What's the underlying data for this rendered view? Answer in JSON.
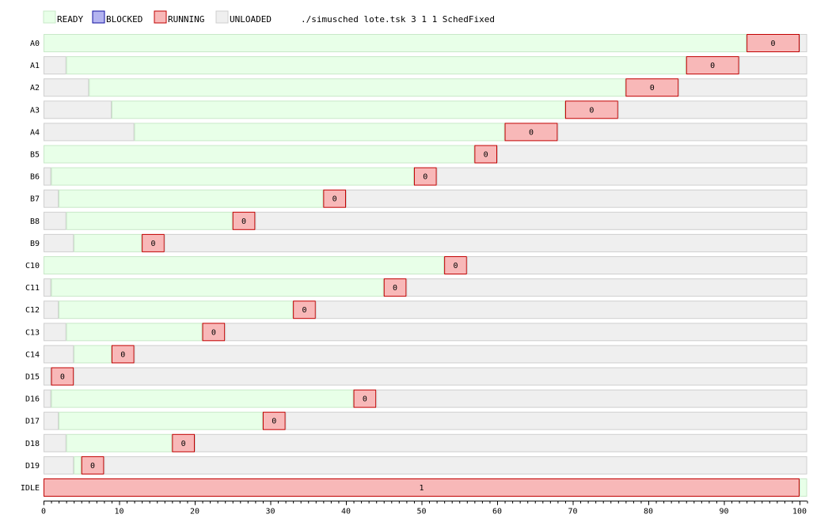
{
  "chart_data": {
    "type": "gantt",
    "legend": [
      {
        "label": "READY",
        "fill": "#e8ffe8",
        "stroke": "#c8e8c8"
      },
      {
        "label": "BLOCKED",
        "fill": "#b4b4f0",
        "stroke": "#1010a0"
      },
      {
        "label": "RUNNING",
        "fill": "#f8b8b8",
        "stroke": "#c00000"
      },
      {
        "label": "UNLOADED",
        "fill": "#efefef",
        "stroke": "#cfcfcf"
      }
    ],
    "command": "./simusched lote.tsk 3 1 1 SchedFixed",
    "xlim": [
      0,
      101
    ],
    "xticks": [
      0,
      10,
      20,
      30,
      40,
      50,
      60,
      70,
      80,
      90,
      100
    ],
    "xtick_labels": [
      "0",
      "10",
      "20",
      "30",
      "40",
      "50",
      "60",
      "70",
      "80",
      "90",
      "100"
    ],
    "rows": [
      {
        "label": "A0",
        "segments": [
          {
            "state": "READY",
            "start": 0,
            "end": 93
          },
          {
            "state": "RUNNING",
            "start": 93,
            "end": 100,
            "text": "0"
          },
          {
            "state": "UNLOADED",
            "start": 100,
            "end": 101
          }
        ]
      },
      {
        "label": "A1",
        "segments": [
          {
            "state": "UNLOADED",
            "start": 0,
            "end": 3
          },
          {
            "state": "READY",
            "start": 3,
            "end": 85
          },
          {
            "state": "RUNNING",
            "start": 85,
            "end": 92,
            "text": "0"
          },
          {
            "state": "UNLOADED",
            "start": 92,
            "end": 101
          }
        ]
      },
      {
        "label": "A2",
        "segments": [
          {
            "state": "UNLOADED",
            "start": 0,
            "end": 6
          },
          {
            "state": "READY",
            "start": 6,
            "end": 77
          },
          {
            "state": "RUNNING",
            "start": 77,
            "end": 84,
            "text": "0"
          },
          {
            "state": "UNLOADED",
            "start": 84,
            "end": 101
          }
        ]
      },
      {
        "label": "A3",
        "segments": [
          {
            "state": "UNLOADED",
            "start": 0,
            "end": 9
          },
          {
            "state": "READY",
            "start": 9,
            "end": 69
          },
          {
            "state": "RUNNING",
            "start": 69,
            "end": 76,
            "text": "0"
          },
          {
            "state": "UNLOADED",
            "start": 76,
            "end": 101
          }
        ]
      },
      {
        "label": "A4",
        "segments": [
          {
            "state": "UNLOADED",
            "start": 0,
            "end": 12
          },
          {
            "state": "READY",
            "start": 12,
            "end": 61
          },
          {
            "state": "RUNNING",
            "start": 61,
            "end": 68,
            "text": "0"
          },
          {
            "state": "UNLOADED",
            "start": 68,
            "end": 101
          }
        ]
      },
      {
        "label": "B5",
        "segments": [
          {
            "state": "READY",
            "start": 0,
            "end": 57
          },
          {
            "state": "RUNNING",
            "start": 57,
            "end": 60,
            "text": "0"
          },
          {
            "state": "UNLOADED",
            "start": 60,
            "end": 101
          }
        ]
      },
      {
        "label": "B6",
        "segments": [
          {
            "state": "UNLOADED",
            "start": 0,
            "end": 1
          },
          {
            "state": "READY",
            "start": 1,
            "end": 49
          },
          {
            "state": "RUNNING",
            "start": 49,
            "end": 52,
            "text": "0"
          },
          {
            "state": "UNLOADED",
            "start": 52,
            "end": 101
          }
        ]
      },
      {
        "label": "B7",
        "segments": [
          {
            "state": "UNLOADED",
            "start": 0,
            "end": 2
          },
          {
            "state": "READY",
            "start": 2,
            "end": 37
          },
          {
            "state": "RUNNING",
            "start": 37,
            "end": 40,
            "text": "0"
          },
          {
            "state": "UNLOADED",
            "start": 40,
            "end": 101
          }
        ]
      },
      {
        "label": "B8",
        "segments": [
          {
            "state": "UNLOADED",
            "start": 0,
            "end": 3
          },
          {
            "state": "READY",
            "start": 3,
            "end": 25
          },
          {
            "state": "RUNNING",
            "start": 25,
            "end": 28,
            "text": "0"
          },
          {
            "state": "UNLOADED",
            "start": 28,
            "end": 101
          }
        ]
      },
      {
        "label": "B9",
        "segments": [
          {
            "state": "UNLOADED",
            "start": 0,
            "end": 4
          },
          {
            "state": "READY",
            "start": 4,
            "end": 13
          },
          {
            "state": "RUNNING",
            "start": 13,
            "end": 16,
            "text": "0"
          },
          {
            "state": "UNLOADED",
            "start": 16,
            "end": 101
          }
        ]
      },
      {
        "label": "C10",
        "segments": [
          {
            "state": "READY",
            "start": 0,
            "end": 53
          },
          {
            "state": "RUNNING",
            "start": 53,
            "end": 56,
            "text": "0"
          },
          {
            "state": "UNLOADED",
            "start": 56,
            "end": 101
          }
        ]
      },
      {
        "label": "C11",
        "segments": [
          {
            "state": "UNLOADED",
            "start": 0,
            "end": 1
          },
          {
            "state": "READY",
            "start": 1,
            "end": 45
          },
          {
            "state": "RUNNING",
            "start": 45,
            "end": 48,
            "text": "0"
          },
          {
            "state": "UNLOADED",
            "start": 48,
            "end": 101
          }
        ]
      },
      {
        "label": "C12",
        "segments": [
          {
            "state": "UNLOADED",
            "start": 0,
            "end": 2
          },
          {
            "state": "READY",
            "start": 2,
            "end": 33
          },
          {
            "state": "RUNNING",
            "start": 33,
            "end": 36,
            "text": "0"
          },
          {
            "state": "UNLOADED",
            "start": 36,
            "end": 101
          }
        ]
      },
      {
        "label": "C13",
        "segments": [
          {
            "state": "UNLOADED",
            "start": 0,
            "end": 3
          },
          {
            "state": "READY",
            "start": 3,
            "end": 21
          },
          {
            "state": "RUNNING",
            "start": 21,
            "end": 24,
            "text": "0"
          },
          {
            "state": "UNLOADED",
            "start": 24,
            "end": 101
          }
        ]
      },
      {
        "label": "C14",
        "segments": [
          {
            "state": "UNLOADED",
            "start": 0,
            "end": 4
          },
          {
            "state": "READY",
            "start": 4,
            "end": 9
          },
          {
            "state": "RUNNING",
            "start": 9,
            "end": 12,
            "text": "0"
          },
          {
            "state": "UNLOADED",
            "start": 12,
            "end": 101
          }
        ]
      },
      {
        "label": "D15",
        "segments": [
          {
            "state": "UNLOADED",
            "start": 0,
            "end": 1
          },
          {
            "state": "RUNNING",
            "start": 1,
            "end": 4,
            "text": "0"
          },
          {
            "state": "UNLOADED",
            "start": 4,
            "end": 101
          }
        ]
      },
      {
        "label": "D16",
        "segments": [
          {
            "state": "UNLOADED",
            "start": 0,
            "end": 1
          },
          {
            "state": "READY",
            "start": 1,
            "end": 41
          },
          {
            "state": "RUNNING",
            "start": 41,
            "end": 44,
            "text": "0"
          },
          {
            "state": "UNLOADED",
            "start": 44,
            "end": 101
          }
        ]
      },
      {
        "label": "D17",
        "segments": [
          {
            "state": "UNLOADED",
            "start": 0,
            "end": 2
          },
          {
            "state": "READY",
            "start": 2,
            "end": 29
          },
          {
            "state": "RUNNING",
            "start": 29,
            "end": 32,
            "text": "0"
          },
          {
            "state": "UNLOADED",
            "start": 32,
            "end": 101
          }
        ]
      },
      {
        "label": "D18",
        "segments": [
          {
            "state": "UNLOADED",
            "start": 0,
            "end": 3
          },
          {
            "state": "READY",
            "start": 3,
            "end": 17
          },
          {
            "state": "RUNNING",
            "start": 17,
            "end": 20,
            "text": "0"
          },
          {
            "state": "UNLOADED",
            "start": 20,
            "end": 101
          }
        ]
      },
      {
        "label": "D19",
        "segments": [
          {
            "state": "UNLOADED",
            "start": 0,
            "end": 4
          },
          {
            "state": "READY",
            "start": 4,
            "end": 5
          },
          {
            "state": "RUNNING",
            "start": 5,
            "end": 8,
            "text": "0"
          },
          {
            "state": "UNLOADED",
            "start": 8,
            "end": 101
          }
        ]
      },
      {
        "label": "IDLE",
        "segments": [
          {
            "state": "RUNNING",
            "start": 0,
            "end": 100,
            "text": "1"
          },
          {
            "state": "READY",
            "start": 100,
            "end": 101
          }
        ]
      }
    ]
  }
}
